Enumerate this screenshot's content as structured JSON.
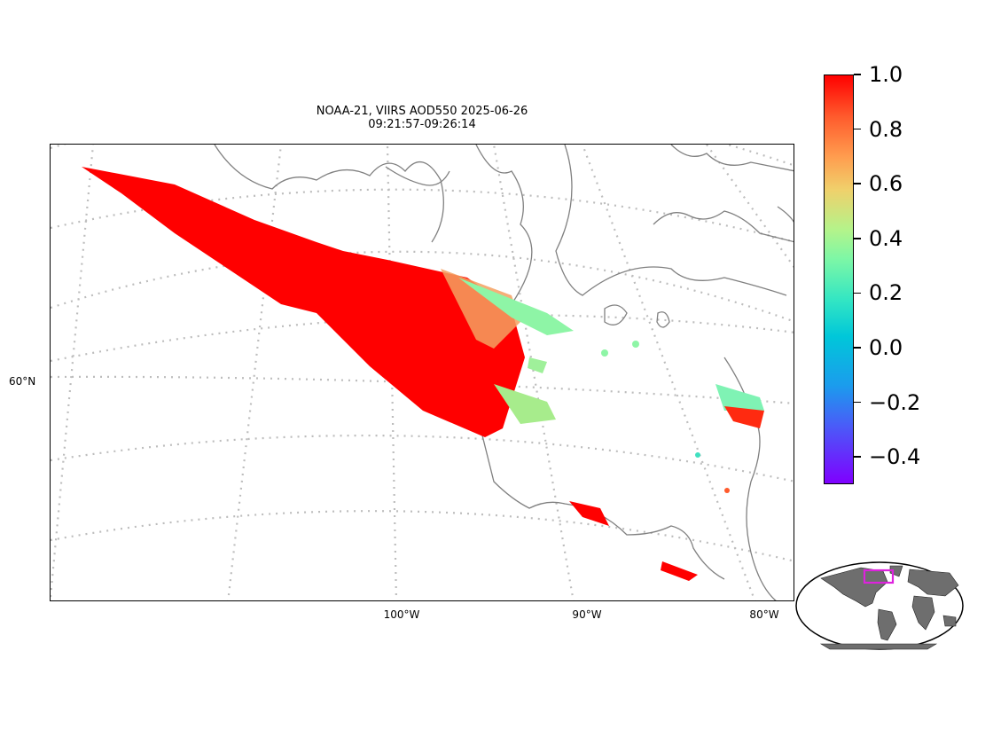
{
  "title": {
    "line1": "NOAA-21, VIIRS AOD550 2025-06-26",
    "line2": "09:21:57-09:26:14"
  },
  "map": {
    "lat_labels": [
      "60°N"
    ],
    "lon_labels": [
      "100°W",
      "90°W",
      "80°W"
    ],
    "graticule_style": "dotted gray",
    "coastline_color": "#808080",
    "extent_marker_color": "#dd22dd"
  },
  "colorbar": {
    "colormap": "rainbow",
    "min": -0.5,
    "max": 1.0,
    "ticks": [
      "1.0",
      "0.8",
      "0.6",
      "0.4",
      "0.2",
      "0.0",
      "−0.2",
      "−0.4"
    ]
  },
  "chart_data": {
    "type": "heatmap",
    "variable": "AOD550",
    "description_of_field": "swath of aerosol optical depth retrievals, mostly saturated high values in smoke plume",
    "value_range": [
      -0.5,
      1.0
    ],
    "dominant_value": 1.0
  }
}
